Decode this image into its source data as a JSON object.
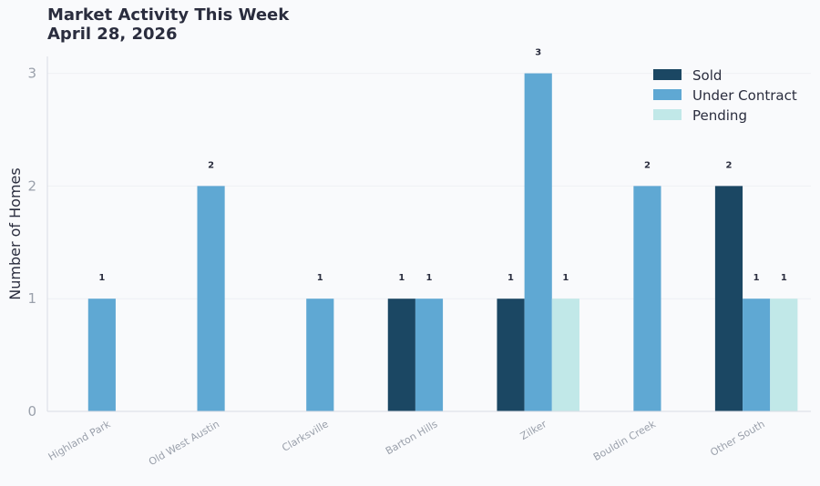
{
  "chart_data": {
    "type": "bar",
    "title": "Market Activity This Week",
    "subtitle": "April 28, 2026",
    "xlabel": "",
    "ylabel": "Number of Homes",
    "ylim": [
      0,
      3.15
    ],
    "yticks": [
      0,
      1,
      2,
      3
    ],
    "grid": true,
    "legend_position": "top-right",
    "categories": [
      "Highland Park",
      "Old West Austin",
      "Clarksville",
      "Barton Hills",
      "Zilker",
      "Bouldin Creek",
      "Other South"
    ],
    "series": [
      {
        "name": "Sold",
        "color": "#1b4763",
        "values": [
          0,
          0,
          0,
          1,
          1,
          0,
          2
        ]
      },
      {
        "name": "Under Contract",
        "color": "#5fa8d3",
        "values": [
          1,
          2,
          1,
          1,
          3,
          2,
          1
        ]
      },
      {
        "name": "Pending",
        "color": "#c1e8e8",
        "values": [
          0,
          0,
          0,
          0,
          1,
          0,
          1
        ]
      }
    ]
  }
}
